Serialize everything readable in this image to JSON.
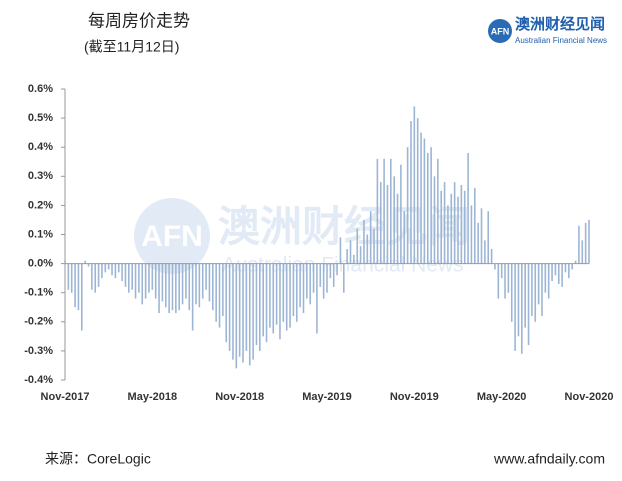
{
  "chart_data": {
    "type": "bar",
    "title": "每周房价走势",
    "subtitle": "(截至11月12日)",
    "source": "来源：CoreLogic",
    "website": "www.afndaily.com",
    "color": "#9db5d4",
    "categories": [
      "Nov-2017",
      null,
      null,
      null,
      null,
      null,
      null,
      null,
      null,
      null,
      null,
      null,
      null,
      null,
      null,
      null,
      null,
      null,
      null,
      null,
      null,
      null,
      null,
      null,
      null,
      null,
      "May-2018",
      null,
      null,
      null,
      null,
      null,
      null,
      null,
      null,
      null,
      null,
      null,
      null,
      null,
      null,
      null,
      null,
      null,
      null,
      null,
      null,
      null,
      null,
      null,
      null,
      null,
      "Nov-2018",
      null,
      null,
      null,
      null,
      null,
      null,
      null,
      null,
      null,
      null,
      null,
      null,
      null,
      null,
      null,
      null,
      null,
      null,
      null,
      null,
      null,
      null,
      null,
      null,
      null,
      "May-2019",
      null,
      null,
      null,
      null,
      null,
      null,
      null,
      null,
      null,
      null,
      null,
      null,
      null,
      null,
      null,
      null,
      null,
      null,
      null,
      null,
      null,
      null,
      null,
      null,
      null,
      "Nov-2019",
      null,
      null,
      null,
      null,
      null,
      null,
      null,
      null,
      null,
      null,
      null,
      null,
      null,
      null,
      null,
      null,
      null,
      null,
      null,
      null,
      null,
      null,
      null,
      null,
      null,
      "May-2020",
      null,
      null,
      null,
      null,
      null,
      null,
      null,
      null,
      null,
      null,
      null,
      null,
      null,
      null,
      null,
      null,
      null,
      null,
      null,
      null,
      null,
      null,
      null,
      null,
      null,
      "Nov-2020"
    ],
    "values": [
      0.01,
      -0.09,
      -0.1,
      -0.15,
      -0.16,
      -0.23,
      0.01,
      -0.01,
      -0.09,
      -0.1,
      -0.08,
      -0.05,
      -0.03,
      -0.02,
      -0.04,
      -0.05,
      -0.03,
      -0.06,
      -0.08,
      -0.1,
      -0.09,
      -0.12,
      -0.1,
      -0.14,
      -0.12,
      -0.1,
      -0.09,
      -0.12,
      -0.17,
      -0.13,
      -0.15,
      -0.17,
      -0.16,
      -0.17,
      -0.16,
      -0.14,
      -0.12,
      -0.16,
      -0.23,
      -0.14,
      -0.15,
      -0.12,
      -0.09,
      -0.13,
      -0.16,
      -0.2,
      -0.22,
      -0.18,
      -0.27,
      -0.3,
      -0.33,
      -0.36,
      -0.32,
      -0.34,
      -0.3,
      -0.35,
      -0.33,
      -0.28,
      -0.3,
      -0.25,
      -0.27,
      -0.22,
      -0.24,
      -0.21,
      -0.26,
      -0.2,
      -0.23,
      -0.22,
      -0.18,
      -0.2,
      -0.15,
      -0.17,
      -0.12,
      -0.14,
      -0.1,
      -0.24,
      -0.08,
      -0.12,
      -0.1,
      -0.05,
      -0.08,
      -0.04,
      0.09,
      -0.1,
      0.05,
      0.08,
      0.03,
      0.12,
      0.06,
      0.15,
      0.1,
      0.18,
      0.12,
      0.36,
      0.28,
      0.36,
      0.27,
      0.36,
      0.3,
      0.24,
      0.34,
      0.18,
      0.4,
      0.49,
      0.54,
      0.5,
      0.45,
      0.43,
      0.38,
      0.4,
      0.3,
      0.36,
      0.25,
      0.28,
      0.2,
      0.24,
      0.28,
      0.23,
      0.27,
      0.25,
      0.38,
      0.2,
      0.26,
      0.14,
      0.19,
      0.08,
      0.18,
      0.05,
      -0.02,
      -0.12,
      -0.05,
      -0.12,
      -0.1,
      -0.2,
      -0.3,
      -0.25,
      -0.31,
      -0.22,
      -0.28,
      -0.18,
      -0.2,
      -0.14,
      -0.18,
      -0.1,
      -0.12,
      -0.06,
      -0.04,
      -0.07,
      -0.08,
      -0.03,
      -0.05,
      -0.02,
      0.01,
      0.13,
      0.08,
      0.14,
      0.15
    ],
    "ylim": [
      -0.4,
      0.6
    ],
    "yticks": [
      {
        "value": -0.4,
        "label": "-0.4%"
      },
      {
        "value": -0.3,
        "label": "-0.3%"
      },
      {
        "value": -0.2,
        "label": "-0.2%"
      },
      {
        "value": -0.1,
        "label": "-0.1%"
      },
      {
        "value": 0,
        "label": "0.0%"
      },
      {
        "value": 0.1,
        "label": "0.1%"
      },
      {
        "value": 0.2,
        "label": "0.2%"
      },
      {
        "value": 0.3,
        "label": "0.3%"
      },
      {
        "value": 0.4,
        "label": "0.4%"
      },
      {
        "value": 0.5,
        "label": "0.5%"
      },
      {
        "value": 0.6,
        "label": "0.6%"
      }
    ],
    "grid": false
  },
  "logo": {
    "mark": "AFN",
    "name": "澳洲财经见闻",
    "name_en": "Australian Financial News"
  }
}
